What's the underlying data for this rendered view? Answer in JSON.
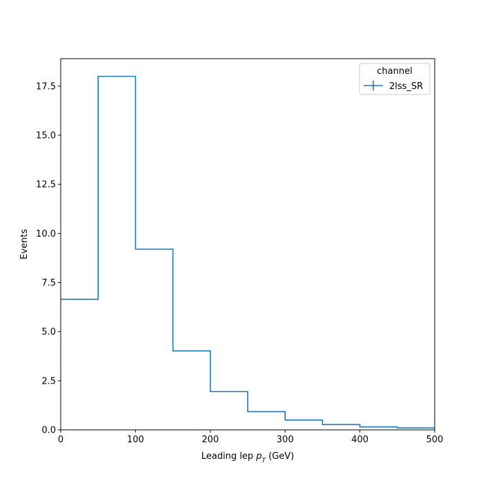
{
  "chart_data": {
    "type": "histogram-step",
    "title": "",
    "xlabel_prefix": "Leading lep ",
    "xlabel_var": "p",
    "xlabel_sub": "T",
    "xlabel_suffix": " (GeV)",
    "ylabel": "Events",
    "xlim": [
      0,
      500
    ],
    "ylim": [
      0,
      18.9
    ],
    "xticks": [
      0,
      100,
      200,
      300,
      400,
      500
    ],
    "xtick_labels": [
      "0",
      "100",
      "200",
      "300",
      "400",
      "500"
    ],
    "yticks": [
      0,
      2.5,
      5,
      7.5,
      10,
      12.5,
      15,
      17.5
    ],
    "ytick_labels": [
      "0.0",
      "2.5",
      "5.0",
      "7.5",
      "10.0",
      "12.5",
      "15.0",
      "17.5"
    ],
    "bin_edges": [
      0,
      50,
      100,
      150,
      200,
      250,
      300,
      350,
      400,
      450,
      500
    ],
    "series": [
      {
        "name": "2lss_SR",
        "color": "#1f77b4",
        "values": [
          6.65,
          18.0,
          9.2,
          4.02,
          1.95,
          0.93,
          0.5,
          0.27,
          0.15,
          0.1
        ]
      }
    ],
    "legend": {
      "title": "channel",
      "position": "top-right"
    },
    "grid": false
  }
}
